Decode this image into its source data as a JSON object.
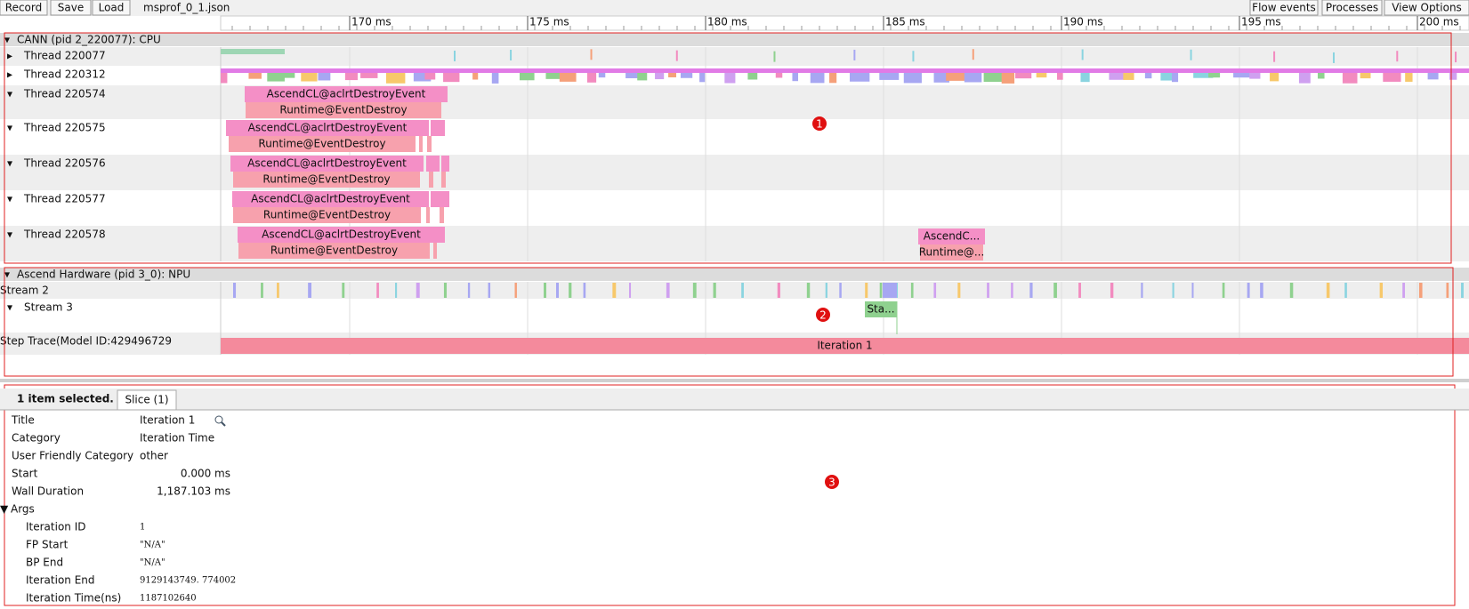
{
  "toolbar": {
    "buttons": [
      "Record",
      "Save",
      "Load"
    ],
    "file": "msprof_0_1.json",
    "right_buttons": [
      "Flow events",
      "Processes",
      "View Options"
    ]
  },
  "ruler": {
    "ticks": [
      "170 ms",
      "175 ms",
      "180 ms",
      "185 ms",
      "190 ms",
      "195 ms",
      "200 ms"
    ]
  },
  "processes": [
    {
      "header": "CANN (pid 2_220077): CPU",
      "threads": [
        {
          "label": "Thread 220077",
          "slices": []
        },
        {
          "label": "Thread 220312",
          "slices": []
        },
        {
          "label": "Thread 220574",
          "slices": [
            "AscendCL@aclrtDestroyEvent",
            "Runtime@EventDestroy"
          ]
        },
        {
          "label": "Thread 220575",
          "slices": [
            "AscendCL@aclrtDestroyEvent",
            "Runtime@EventDestroy"
          ]
        },
        {
          "label": "Thread 220576",
          "slices": [
            "AscendCL@aclrtDestroyEvent",
            "Runtime@EventDestroy"
          ]
        },
        {
          "label": "Thread 220577",
          "slices": [
            "AscendCL@aclrtDestroyEvent",
            "Runtime@EventDestroy"
          ]
        },
        {
          "label": "Thread 220578",
          "slices": [
            "AscendCL@aclrtDestroyEvent",
            "Runtime@EventDestroy",
            "AscendC...",
            "Runtime@..."
          ]
        }
      ]
    },
    {
      "header": "Ascend Hardware (pid 3_0): NPU",
      "threads": [
        {
          "label": "Stream 2",
          "slices": []
        },
        {
          "label": "Stream 3",
          "slices": [
            "Sta..."
          ]
        },
        {
          "label": "Step Trace(Model ID:429496729",
          "slices": [
            "Iteration 1"
          ]
        }
      ]
    }
  ],
  "annotations": [
    "1",
    "2",
    "3"
  ],
  "details": {
    "selected": "1 item selected.",
    "tab": "Slice (1)",
    "fields": [
      [
        "Title",
        "Iteration 1"
      ],
      [
        "Category",
        "Iteration Time"
      ],
      [
        "User Friendly Category",
        "other"
      ],
      [
        "Start",
        "0.000 ms"
      ],
      [
        "Wall Duration",
        "1,187.103 ms"
      ]
    ],
    "args_label": "Args",
    "args": [
      [
        "Iteration ID",
        "1"
      ],
      [
        "FP Start",
        "\"N/A\""
      ],
      [
        "BP End",
        "\"N/A\""
      ],
      [
        "Iteration End",
        "9129143749. 774002"
      ],
      [
        "Iteration Time(ns)",
        "1187102640"
      ]
    ]
  }
}
